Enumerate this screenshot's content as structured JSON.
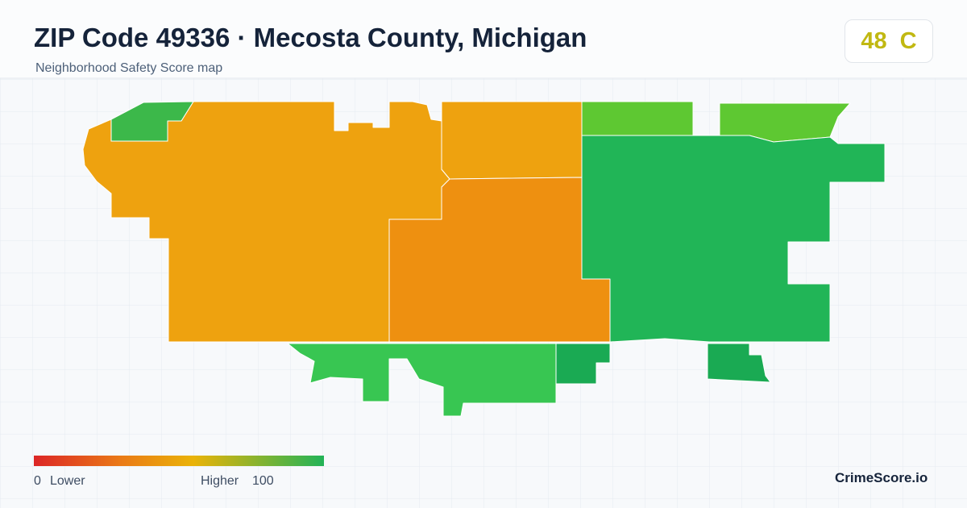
{
  "header": {
    "title": "ZIP Code 49336 · Mecosta County, Michigan",
    "subtitle": "Neighborhood Safety Score map"
  },
  "score": {
    "value": 48,
    "grade": "C"
  },
  "legend": {
    "min": 0,
    "min_label": "Lower",
    "max_label": "Higher",
    "max": 100
  },
  "brand": "CrimeScore.io"
}
